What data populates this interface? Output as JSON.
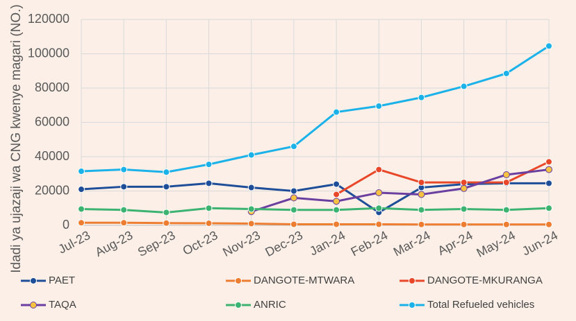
{
  "chart_data": {
    "type": "line",
    "y_label": "Idadi ya ujazaji wa CNG kwenye magari (NO.)",
    "categories": [
      "Jul-23",
      "Aug-23",
      "Sep-23",
      "Oct-23",
      "Nov-23",
      "Dec-23",
      "Jan-24",
      "Feb-24",
      "Mar-24",
      "Apr-24",
      "May-24",
      "Jun-24"
    ],
    "series": [
      {
        "name": "PAET",
        "color": "#1f4e99",
        "values": [
          21000,
          22500,
          22500,
          24500,
          22000,
          20000,
          24000,
          7500,
          22000,
          24000,
          24500,
          24500
        ]
      },
      {
        "name": "DANGOTE-MTWARA",
        "color": "#ed7d31",
        "values": [
          1500,
          1500,
          1300,
          1200,
          1000,
          600,
          600,
          600,
          500,
          500,
          500,
          500
        ]
      },
      {
        "name": "DANGOTE-MKURANGA",
        "color": "#e8472a",
        "values": [
          null,
          null,
          null,
          null,
          null,
          null,
          18000,
          32500,
          25000,
          25000,
          25000,
          37000
        ]
      },
      {
        "name": "TAQA",
        "color": "#6a3fa0",
        "marker_color": "#f5c242",
        "values": [
          null,
          null,
          null,
          null,
          8000,
          16000,
          14000,
          19000,
          18000,
          21500,
          29500,
          32500
        ]
      },
      {
        "name": "ANRIC",
        "color": "#3cb371",
        "values": [
          9500,
          9000,
          7500,
          10000,
          9500,
          9000,
          9000,
          10000,
          9000,
          9500,
          9000,
          10000
        ]
      },
      {
        "name": "Total Refueled vehicles",
        "color": "#1ab2e8",
        "values": [
          31500,
          32500,
          31000,
          35500,
          41000,
          46000,
          66000,
          69500,
          74500,
          81000,
          88500,
          104500
        ]
      }
    ],
    "ylim": [
      0,
      120000
    ],
    "yticks": [
      0,
      20000,
      40000,
      60000,
      80000,
      100000,
      120000
    ],
    "grid": true
  }
}
